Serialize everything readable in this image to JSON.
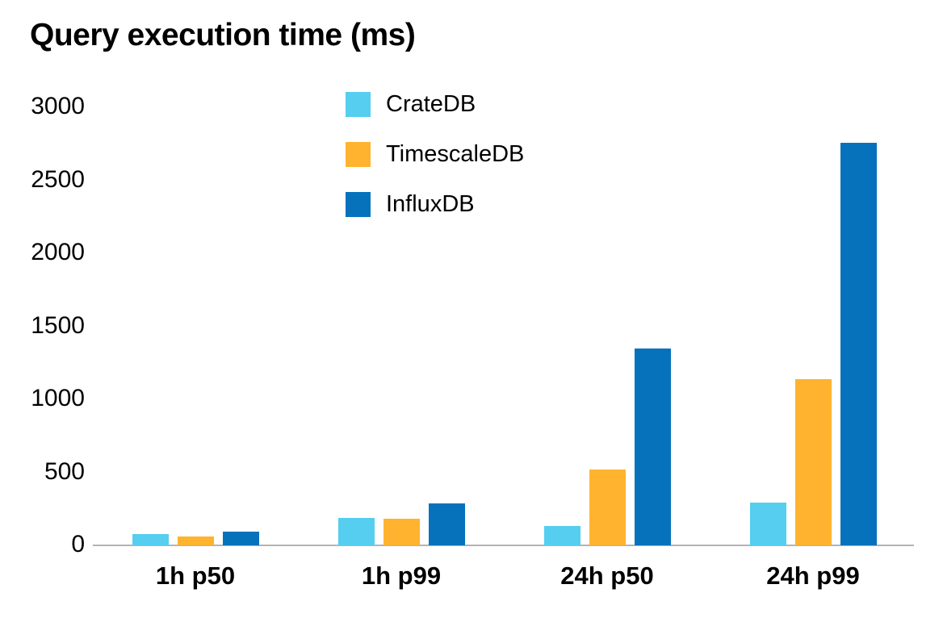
{
  "title": "Query execution time (ms)",
  "colors": {
    "cratedb": "#55CEF0",
    "timescaledb": "#FFB32E",
    "influxdb": "#0672BC",
    "axis_line": "#B3B3B3",
    "text": "#000000"
  },
  "chart_data": {
    "type": "bar",
    "title": "Query execution time (ms)",
    "categories": [
      "1h p50",
      "1h p99",
      "24h p50",
      "24h p99"
    ],
    "series": [
      {
        "name": "CrateDB",
        "color": "#55CEF0",
        "values": [
          80,
          190,
          135,
          295
        ]
      },
      {
        "name": "TimescaleDB",
        "color": "#FFB32E",
        "values": [
          60,
          185,
          520,
          1140
        ]
      },
      {
        "name": "InfluxDB",
        "color": "#0672BC",
        "values": [
          95,
          290,
          1350,
          2755
        ]
      }
    ],
    "xlabel": "",
    "ylabel": "",
    "ylim": [
      0,
      3000
    ],
    "yticks": [
      0,
      500,
      1000,
      1500,
      2000,
      2500,
      3000
    ],
    "grid": false,
    "legend_position": "top-center"
  }
}
